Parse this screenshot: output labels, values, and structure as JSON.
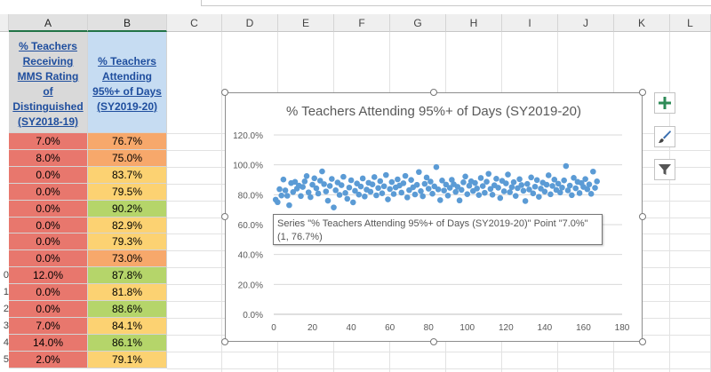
{
  "columns": [
    "A",
    "B",
    "C",
    "D",
    "E",
    "F",
    "G",
    "H",
    "I",
    "J",
    "K",
    "L"
  ],
  "header": {
    "a": [
      "% Teachers",
      "Receiving",
      "MMS Rating",
      "of",
      "Distinguished",
      "(SY2018-19)"
    ],
    "b": [
      "% Teachers",
      "Attending",
      "95%+ of Days",
      "(SY2019-20)"
    ]
  },
  "rows": [
    {
      "num": "",
      "a": "7.0%",
      "b": "76.7%"
    },
    {
      "num": "",
      "a": "8.0%",
      "b": "75.0%"
    },
    {
      "num": "",
      "a": "0.0%",
      "b": "83.7%"
    },
    {
      "num": "",
      "a": "0.0%",
      "b": "79.5%"
    },
    {
      "num": "",
      "a": "0.0%",
      "b": "90.2%"
    },
    {
      "num": "",
      "a": "0.0%",
      "b": "82.9%"
    },
    {
      "num": "",
      "a": "0.0%",
      "b": "79.3%"
    },
    {
      "num": "",
      "a": "0.0%",
      "b": "73.0%"
    },
    {
      "num": "0",
      "a": "12.0%",
      "b": "87.8%"
    },
    {
      "num": "1",
      "a": "0.0%",
      "b": "81.8%"
    },
    {
      "num": "2",
      "a": "0.0%",
      "b": "88.6%"
    },
    {
      "num": "3",
      "a": "7.0%",
      "b": "84.1%"
    },
    {
      "num": "4",
      "a": "14.0%",
      "b": "86.1%"
    },
    {
      "num": "5",
      "a": "2.0%",
      "b": "79.1%"
    }
  ],
  "colors": {
    "a_cell": "#e8776d",
    "b_high": "#b5d56a",
    "b_mid": "#fcd272",
    "b_low": "#f7a86b",
    "point": "#5b9bd5",
    "selected_border": "#217346"
  },
  "chart_data": {
    "type": "scatter",
    "title": "% Teachers Attending 95%+ of Days (SY2019-20)",
    "xlim": [
      0,
      180
    ],
    "ylim": [
      0,
      120
    ],
    "x_ticks": [
      "0",
      "20",
      "40",
      "60",
      "80",
      "100",
      "120",
      "140",
      "160",
      "180"
    ],
    "y_ticks": [
      "0.0%",
      "20.0%",
      "40.0%",
      "60.0%",
      "80.0%",
      "100.0%",
      "120.0%"
    ],
    "grid": "horizontal",
    "y_values": [
      76.7,
      75.0,
      83.7,
      79.5,
      90.2,
      82.9,
      79.3,
      73.0,
      87.8,
      81.8,
      88.6,
      84.1,
      86.1,
      79.1,
      85.2,
      88.9,
      92.5,
      81.6,
      78.4,
      86.7,
      91.0,
      84.3,
      80.8,
      89.4,
      95.6,
      87.1,
      82.2,
      76.0,
      85.9,
      90.6,
      71.5,
      83.0,
      88.2,
      79.9,
      86.4,
      92.0,
      81.2,
      77.3,
      84.8,
      89.7,
      74.9,
      82.6,
      87.5,
      80.1,
      85.5,
      90.9,
      78.8,
      83.4,
      88.0,
      82.0,
      86.9,
      91.8,
      79.6,
      84.5,
      89.1,
      81.0,
      85.7,
      93.2,
      76.9,
      83.8,
      88.5,
      80.5,
      84.9,
      90.3,
      86.2,
      81.4,
      87.7,
      92.6,
      78.2,
      83.1,
      89.9,
      85.0,
      80.2,
      86.6,
      95.2,
      82.4,
      79.0,
      87.3,
      91.5,
      84.0,
      88.8,
      80.7,
      85.6,
      98.5,
      83.6,
      76.4,
      89.5,
      82.8,
      86.8,
      79.4,
      84.6,
      90.0,
      87.0,
      81.9,
      85.3,
      76.2,
      83.3,
      88.3,
      92.2,
      80.4,
      86.0,
      89.0,
      82.5,
      87.9,
      84.2,
      79.8,
      91.2,
      85.8,
      81.3,
      88.7,
      94.0,
      83.9,
      80.0,
      86.3,
      90.7,
      84.7,
      77.8,
      89.3,
      82.3,
      87.6,
      93.5,
      81.7,
      85.1,
      88.4,
      79.2,
      84.4,
      90.4,
      86.5,
      82.7,
      75.8,
      87.2,
      83.5,
      91.6,
      80.9,
      85.4,
      89.8,
      78.6,
      84.1,
      88.1,
      82.1,
      86.7,
      93.0,
      80.3,
      85.9,
      90.1,
      83.2,
      87.4,
      81.5,
      84.8,
      89.6,
      99.2,
      82.9,
      86.1,
      79.7,
      91.3,
      84.3,
      88.6,
      81.1,
      87.8,
      85.2,
      90.5,
      83.7,
      86.9,
      80.6,
      95.5,
      84.6,
      88.9
    ],
    "tooltip": {
      "line1": "Series \"% Teachers Attending 95%+ of Days (SY2019-20)\" Point \"7.0%\"",
      "line2": "(1, 76.7%)"
    }
  },
  "icons": {
    "elements": "plus-icon",
    "styles": "paintbrush-icon",
    "filters": "funnel-icon"
  }
}
